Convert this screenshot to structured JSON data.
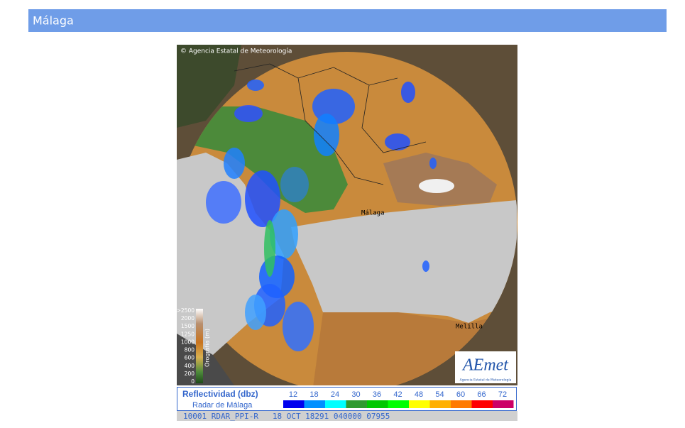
{
  "header": {
    "title": "Málaga"
  },
  "radar": {
    "credit": "© Agencia Estatal de Meteorología",
    "places": [
      "Málaga",
      "Melilla"
    ]
  },
  "orography": {
    "title": "Orografía (m)",
    "labels": [
      ">2500",
      "2000",
      "1500",
      "1250",
      "1000",
      "800",
      "600",
      "400",
      "200",
      "0"
    ]
  },
  "logo": {
    "name": "AEmet",
    "subtitle": "Agencia Estatal de Meteorología"
  },
  "legend": {
    "title": "Reflectividad (dbz)",
    "subtitle": "Radar de Málaga",
    "levels": [
      {
        "value": 12,
        "color": "#0000ee"
      },
      {
        "value": 18,
        "color": "#0090ff"
      },
      {
        "value": 24,
        "color": "#00ffff"
      },
      {
        "value": 30,
        "color": "#2f9a2f"
      },
      {
        "value": 36,
        "color": "#00c800"
      },
      {
        "value": 42,
        "color": "#00ff00"
      },
      {
        "value": 48,
        "color": "#ffff00"
      },
      {
        "value": 54,
        "color": "#ffb000"
      },
      {
        "value": 60,
        "color": "#ff7a00"
      },
      {
        "value": 66,
        "color": "#ff0000"
      },
      {
        "value": 72,
        "color": "#cc0066"
      }
    ]
  },
  "status": "10001 RDAR_PPI-R   18 OCT 18291 040000 07955"
}
